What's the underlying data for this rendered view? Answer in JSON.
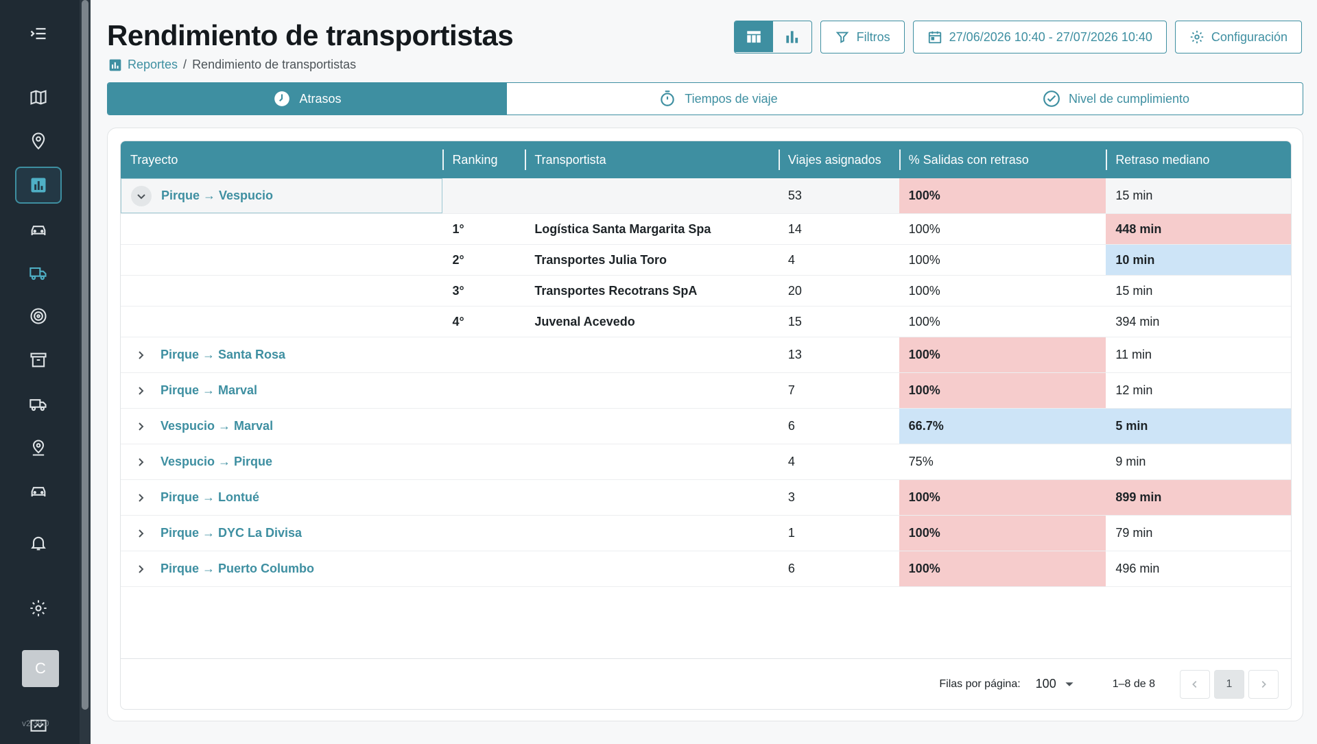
{
  "page": {
    "title": "Rendimiento de transportistas"
  },
  "breadcrumb": {
    "root": "Reportes",
    "separator": "/",
    "current": "Rendimiento de transportistas"
  },
  "toolbar": {
    "filters_label": "Filtros",
    "date_range": "27/06/2026 10:40 - 27/07/2026 10:40",
    "config_label": "Configuración"
  },
  "tabs": [
    {
      "label": "Atrasos",
      "icon": "clock-icon",
      "active": true
    },
    {
      "label": "Tiempos de viaje",
      "icon": "stopwatch-icon",
      "active": false
    },
    {
      "label": "Nivel de cumplimiento",
      "icon": "check-circle-icon",
      "active": false
    }
  ],
  "table": {
    "headers": [
      "Trayecto",
      "Ranking",
      "Transportista",
      "Viajes asignados",
      "% Salidas con retraso",
      "Retraso mediano"
    ],
    "groups": [
      {
        "route": "Pirque → Vespucio",
        "trips": "53",
        "pct": "100%",
        "median": "15 min"
      },
      {
        "route": "Pirque → Santa Rosa",
        "trips": "13",
        "pct": "100%",
        "median": "11 min"
      },
      {
        "route": "Pirque → Marval",
        "trips": "7",
        "pct": "100%",
        "median": "12 min"
      },
      {
        "route": "Vespucio → Marval",
        "trips": "6",
        "pct": "66.7%",
        "median": "5 min"
      },
      {
        "route": "Vespucio → Pirque",
        "trips": "4",
        "pct": "75%",
        "median": "9 min"
      },
      {
        "route": "Pirque → Lontué",
        "trips": "3",
        "pct": "100%",
        "median": "899 min"
      },
      {
        "route": "Pirque → DYC La Divisa",
        "trips": "1",
        "pct": "100%",
        "median": "79 min"
      },
      {
        "route": "Pirque → Puerto Columbo",
        "trips": "6",
        "pct": "100%",
        "median": "496 min"
      }
    ],
    "sub_rows": [
      {
        "rank": "1°",
        "carrier": "Logística Santa Margarita Spa",
        "trips": "14",
        "pct": "100%",
        "median": "448 min"
      },
      {
        "rank": "2°",
        "carrier": "Transportes Julia Toro",
        "trips": "4",
        "pct": "100%",
        "median": "10 min"
      },
      {
        "rank": "3°",
        "carrier": "Transportes Recotrans SpA",
        "trips": "20",
        "pct": "100%",
        "median": "15 min"
      },
      {
        "rank": "4°",
        "carrier": "Juvenal Acevedo",
        "trips": "15",
        "pct": "100%",
        "median": "394 min"
      }
    ]
  },
  "pagination": {
    "rows_per_page_label": "Filas por página:",
    "rows_per_page": "100",
    "range": "1–8 de 8",
    "page": "1"
  },
  "user": {
    "avatar_letter": "C"
  },
  "version": "v2.39.0",
  "colors": {
    "accent": "#3e8fa1",
    "sidebar": "#1f2a33",
    "highlight_red": "#f6cccc",
    "highlight_blue": "#cde4f7"
  }
}
